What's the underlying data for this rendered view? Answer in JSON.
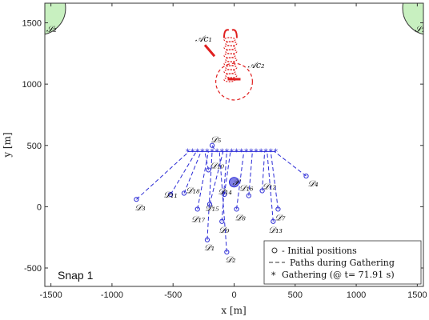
{
  "chart_data": {
    "type": "scatter",
    "xlabel": "x [m]",
    "ylabel": "y [m]",
    "xlim": [
      -1550,
      1550
    ],
    "ylim": [
      -650,
      1660
    ],
    "xticks": [
      -1500,
      -1000,
      -500,
      0,
      500,
      1000,
      1500
    ],
    "yticks": [
      -500,
      0,
      500,
      1000,
      1500
    ],
    "grid": false,
    "panel_label": "Snap 1",
    "legend": {
      "position": "bottom-right",
      "entries": [
        {
          "marker": "circle",
          "label": "- Initial positions"
        },
        {
          "marker": "dash",
          "label": "Paths during Gathering"
        },
        {
          "marker": "asterisk",
          "label": "Gathering (@ t= 71.91 s)"
        }
      ]
    },
    "colors": {
      "drones": "#2b2bd6",
      "attackers": "#e02020",
      "safe_zone": "#c8f0c0",
      "center_point": "#7f7fe8"
    },
    "safe_zones": [
      {
        "name": "S1",
        "label": "𝒮₁",
        "x": 1600,
        "y": 1620,
        "r": 220
      },
      {
        "name": "S2",
        "label": "𝒮₂",
        "x": -1600,
        "y": 1620,
        "r": 220
      }
    ],
    "attackers": [
      {
        "name": "Ac1",
        "label": "𝒜c₁",
        "x": -200,
        "y": 1280
      },
      {
        "name": "Ac2",
        "label": "𝒜c₂",
        "x": 0,
        "y": 1040
      }
    ],
    "attacker_trail_center": {
      "x": -30,
      "y": 1180
    },
    "attacker_circle": {
      "x": 0,
      "y": 1020,
      "r": 150
    },
    "center_point": {
      "label": "𝒫",
      "x": 0,
      "y": 200
    },
    "gathering_line": {
      "y": 450,
      "x_start": -380,
      "x_end": 340
    },
    "drones": [
      {
        "name": "D1",
        "label": "𝒟₁",
        "x": -220,
        "y": -270,
        "gx": -180
      },
      {
        "name": "D2",
        "label": "𝒟₂",
        "x": -60,
        "y": -370,
        "gx": -120
      },
      {
        "name": "D3",
        "label": "𝒟₃",
        "x": -800,
        "y": 60,
        "gx": -370
      },
      {
        "name": "D4",
        "label": "𝒟₄",
        "x": 590,
        "y": 250,
        "gx": 330
      },
      {
        "name": "D5",
        "label": "𝒟₅",
        "x": -180,
        "y": 500,
        "gx": -150
      },
      {
        "name": "D7",
        "label": "𝒟₇",
        "x": 360,
        "y": -20,
        "gx": 300
      },
      {
        "name": "D8",
        "label": "𝒟₈",
        "x": 20,
        "y": -20,
        "gx": 80
      },
      {
        "name": "D9",
        "label": "𝒟₉",
        "x": -100,
        "y": -120,
        "gx": -60
      },
      {
        "name": "D10",
        "label": "𝒟₁₀",
        "x": -210,
        "y": 300,
        "gx": -240
      },
      {
        "name": "D11",
        "label": "𝒟₁₁",
        "x": -520,
        "y": 100,
        "gx": -310
      },
      {
        "name": "D12",
        "label": "𝒟₁₂",
        "x": 230,
        "y": 130,
        "gx": 250
      },
      {
        "name": "D13",
        "label": "𝒟₁₃",
        "x": 320,
        "y": -120,
        "gx": 270
      },
      {
        "name": "D14",
        "label": "𝒟₁₄",
        "x": -80,
        "y": 100,
        "gx": -30
      },
      {
        "name": "D15",
        "label": "𝒟₁₅",
        "x": -200,
        "y": 20,
        "gx": -90
      },
      {
        "name": "D16",
        "label": "𝒟₁₆",
        "x": 120,
        "y": 90,
        "gx": 150
      },
      {
        "name": "D17",
        "label": "𝒟₁₇",
        "x": -300,
        "y": -20,
        "gx": -210
      },
      {
        "name": "D18",
        "label": "𝒟₁₈",
        "x": -410,
        "y": 110,
        "gx": -270
      }
    ]
  }
}
